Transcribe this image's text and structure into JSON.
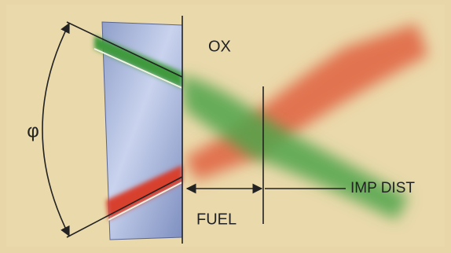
{
  "labels": {
    "angle": "φ",
    "oxidizer": "OX",
    "fuel": "FUEL",
    "impingement_distance": "IMP DIST"
  }
}
